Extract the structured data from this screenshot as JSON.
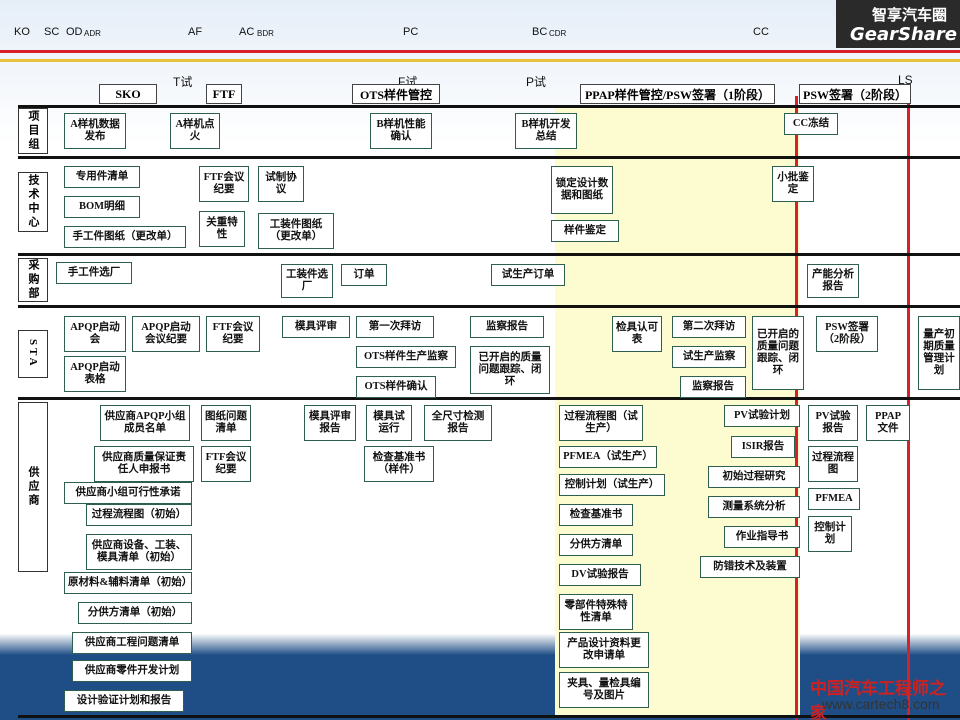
{
  "header": {
    "logo_title": "智享汽车圈",
    "logo_sub": "GearShare",
    "milestones": [
      "KO",
      "SC",
      "OD",
      "ADR",
      "AF",
      "AC",
      "BDR",
      "PC",
      "BC",
      "CDR",
      "CC"
    ],
    "gates": [
      "T试",
      "F试",
      "P试",
      "LS"
    ]
  },
  "phases": [
    "SKO",
    "FTF",
    "OTS样件管控",
    "PPAP样件管控/PSW签署（1阶段）",
    "PSW签署（2阶段）"
  ],
  "lanes": [
    "项目组",
    "技术中心",
    "采购部",
    "STA",
    "供应商"
  ],
  "boxes": [
    "A样机数据发布",
    "A样机点火",
    "B样机性能确认",
    "B样机开发总结",
    "CC冻结",
    "专用件清单",
    "BOM明细",
    "手工件图纸（更改单）",
    "FTF会议纪要",
    "试制协议",
    "关重特性",
    "工装件图纸（更改单）",
    "锁定设计数据和图纸",
    "样件鉴定",
    "小批鉴定",
    "手工件选厂",
    "工装件选厂",
    "订单",
    "试生产订单",
    "产能分析报告",
    "APQP启动会",
    "APQP启动会议纪要",
    "FTF会议纪要",
    "模具评审",
    "第一次拜访",
    "监察报告",
    "OTS样件生产监察",
    "已开启的质量问题跟踪、闭环",
    "OTS样件确认",
    "APQP启动表格",
    "检具认可表",
    "第二次拜访",
    "试生产监察",
    "监察报告",
    "已开启的质量问题跟踪、闭环",
    "PSW签署（2阶段）",
    "量产初期质量管理计划",
    "供应商APQP小组成员名单",
    "供应商质量保证责任人申报书",
    "供应商小组可行性承诺",
    "过程流程图（初始）",
    "供应商设备、工装、模具清单（初始）",
    "原材料&辅料清单（初始）",
    "分供方清单（初始）",
    "供应商工程问题清单",
    "供应商零件开发计划",
    "设计验证计划和报告",
    "图纸问题清单",
    "FTF会议纪要",
    "模具评审报告",
    "模具试运行",
    "全尺寸检测报告",
    "检查基准书（样件）",
    "过程流程图（试生产）",
    "PFMEA（试生产）",
    "控制计划（试生产）",
    "检查基准书",
    "分供方清单",
    "DV试验报告",
    "零部件特殊特性清单",
    "产品设计资料更改申请单",
    "夹具、量检具编号及图片",
    "PV试验计划",
    "ISIR报告",
    "初始过程研究",
    "测量系统分析",
    "作业指导书",
    "防错技术及装置",
    "PV试验报告",
    "PPAP文件",
    "过程流程图",
    "PFMEA",
    "控制计划"
  ],
  "watermark": [
    "中国汽车工程师之家",
    "www.cartech8.com"
  ]
}
